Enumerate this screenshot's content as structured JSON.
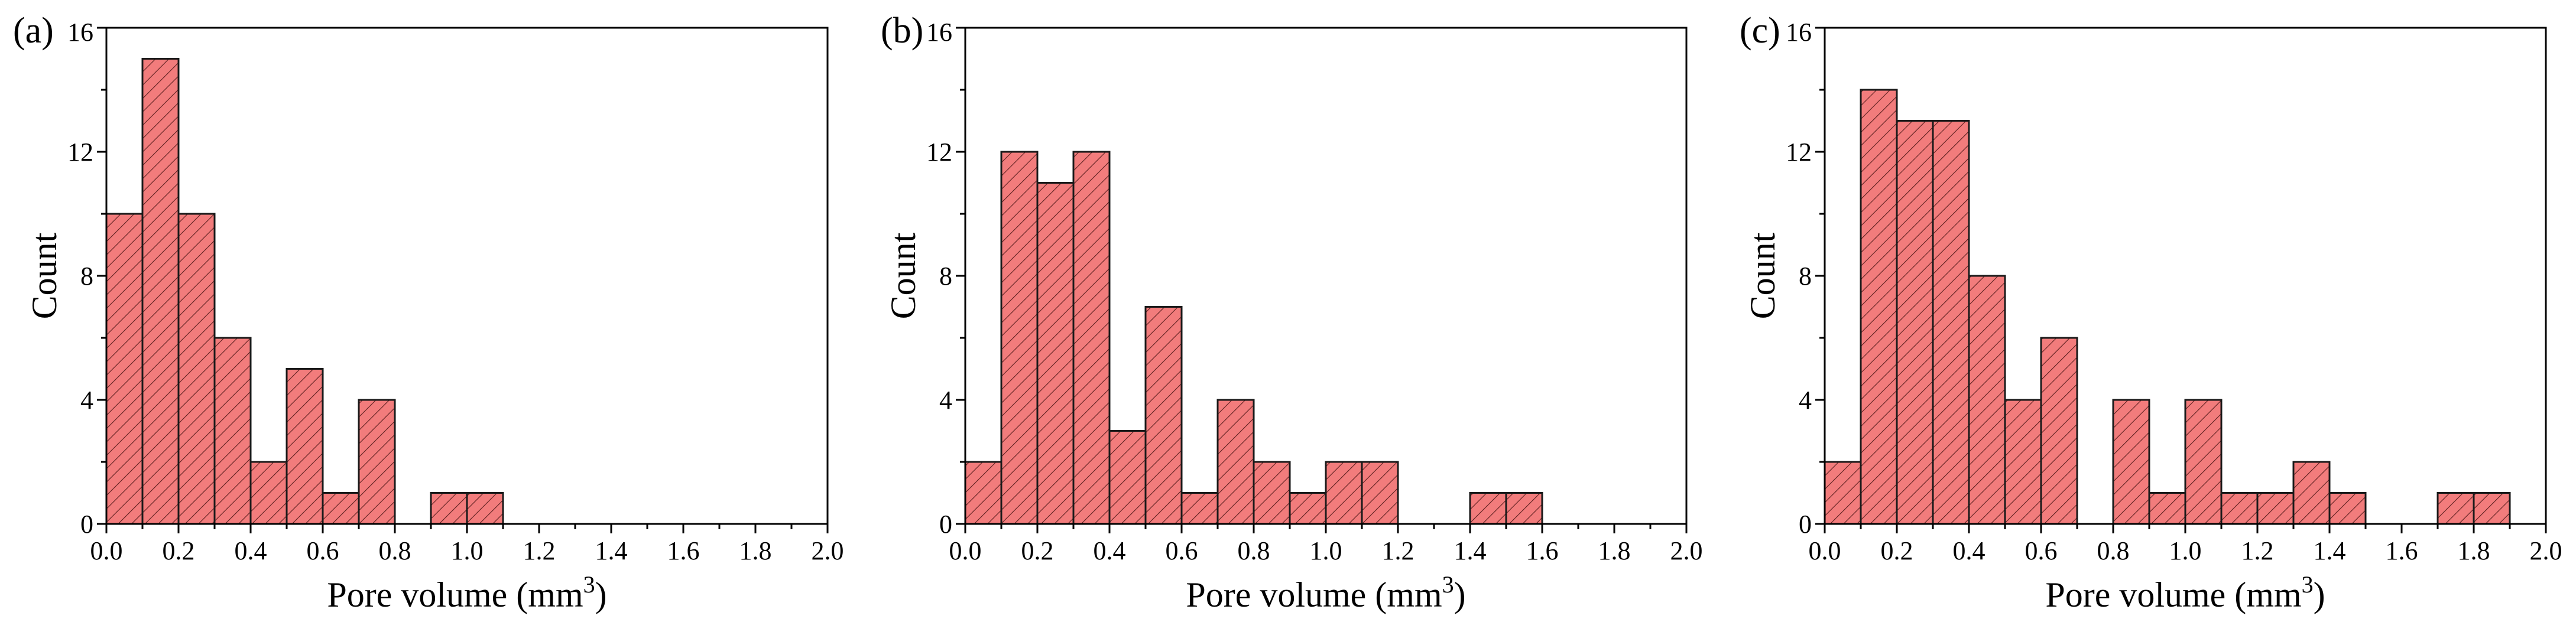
{
  "chart_data": [
    {
      "type": "bar",
      "panel_label": "(a)",
      "xlabel": "Pore volume (mm3)",
      "xlabel_main": "Pore volume (mm",
      "xlabel_sup": "3",
      "xlabel_end": ")",
      "ylabel": "Count",
      "xlim": [
        0.0,
        2.0
      ],
      "ylim": [
        0,
        16
      ],
      "bin_width": 0.1,
      "xticks": [
        "0.0",
        "0.2",
        "0.4",
        "0.6",
        "0.8",
        "1.0",
        "1.2",
        "1.4",
        "1.6",
        "1.8",
        "2.0"
      ],
      "yticks": [
        "0",
        "4",
        "8",
        "12",
        "16"
      ],
      "bins": [
        {
          "x": 0.0,
          "count": 10
        },
        {
          "x": 0.1,
          "count": 15
        },
        {
          "x": 0.2,
          "count": 10
        },
        {
          "x": 0.3,
          "count": 6
        },
        {
          "x": 0.4,
          "count": 2
        },
        {
          "x": 0.5,
          "count": 5
        },
        {
          "x": 0.6,
          "count": 1
        },
        {
          "x": 0.7,
          "count": 4
        },
        {
          "x": 0.9,
          "count": 1
        },
        {
          "x": 1.0,
          "count": 1
        }
      ]
    },
    {
      "type": "bar",
      "panel_label": "(b)",
      "xlabel": "Pore volume (mm3)",
      "xlabel_main": "Pore volume (mm",
      "xlabel_sup": "3",
      "xlabel_end": ")",
      "ylabel": "Count",
      "xlim": [
        0.0,
        2.0
      ],
      "ylim": [
        0,
        16
      ],
      "bin_width": 0.1,
      "xticks": [
        "0.0",
        "0.2",
        "0.4",
        "0.6",
        "0.8",
        "1.0",
        "1.2",
        "1.4",
        "1.6",
        "1.8",
        "2.0"
      ],
      "yticks": [
        "0",
        "4",
        "8",
        "12",
        "16"
      ],
      "bins": [
        {
          "x": 0.0,
          "count": 2
        },
        {
          "x": 0.1,
          "count": 12
        },
        {
          "x": 0.2,
          "count": 11
        },
        {
          "x": 0.3,
          "count": 12
        },
        {
          "x": 0.4,
          "count": 3
        },
        {
          "x": 0.5,
          "count": 7
        },
        {
          "x": 0.6,
          "count": 1
        },
        {
          "x": 0.7,
          "count": 4
        },
        {
          "x": 0.8,
          "count": 2
        },
        {
          "x": 0.9,
          "count": 1
        },
        {
          "x": 1.0,
          "count": 2
        },
        {
          "x": 1.1,
          "count": 2
        },
        {
          "x": 1.4,
          "count": 1
        },
        {
          "x": 1.5,
          "count": 1
        }
      ]
    },
    {
      "type": "bar",
      "panel_label": "(c)",
      "xlabel": "Pore volume (mm3)",
      "xlabel_main": "Pore volume (mm",
      "xlabel_sup": "3",
      "xlabel_end": ")",
      "ylabel": "Count",
      "xlim": [
        0.0,
        2.0
      ],
      "ylim": [
        0,
        16
      ],
      "bin_width": 0.1,
      "xticks": [
        "0.0",
        "0.2",
        "0.4",
        "0.6",
        "0.8",
        "1.0",
        "1.2",
        "1.4",
        "1.6",
        "1.8",
        "2.0"
      ],
      "yticks": [
        "0",
        "4",
        "8",
        "12",
        "16"
      ],
      "bins": [
        {
          "x": 0.0,
          "count": 2
        },
        {
          "x": 0.1,
          "count": 14
        },
        {
          "x": 0.2,
          "count": 13
        },
        {
          "x": 0.3,
          "count": 13
        },
        {
          "x": 0.4,
          "count": 8
        },
        {
          "x": 0.5,
          "count": 4
        },
        {
          "x": 0.6,
          "count": 6
        },
        {
          "x": 0.8,
          "count": 4
        },
        {
          "x": 0.9,
          "count": 1
        },
        {
          "x": 1.0,
          "count": 4
        },
        {
          "x": 1.1,
          "count": 1
        },
        {
          "x": 1.2,
          "count": 1
        },
        {
          "x": 1.3,
          "count": 2
        },
        {
          "x": 1.4,
          "count": 1
        },
        {
          "x": 1.7,
          "count": 1
        },
        {
          "x": 1.8,
          "count": 1
        }
      ]
    }
  ],
  "style": {
    "bar_fill": "#f27c7c",
    "hatch_color": "#5a1e1e",
    "edge_color": "#1a1a1a",
    "axis_color": "#000000"
  }
}
